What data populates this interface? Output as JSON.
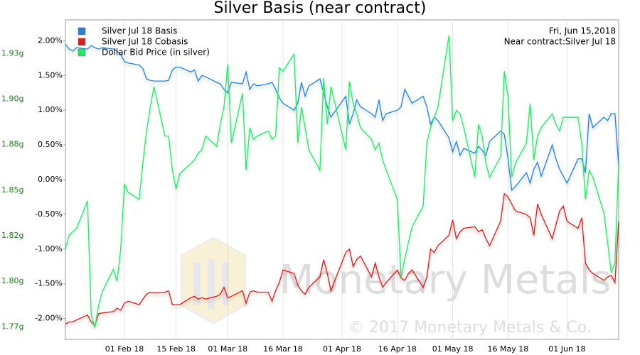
{
  "chart_data": {
    "type": "line",
    "title": "Silver Basis (near contract)",
    "annotations": [
      "Fri, Jun 15,2018",
      "Near contract:Silver Jul 18"
    ],
    "watermark": [
      "Monetary Metals",
      "© 2017 Monetary Metals & Co."
    ],
    "legend": "top-left",
    "xgrid": true,
    "ygrid": false,
    "x": [
      "2018-01-16",
      "2018-01-17",
      "2018-01-18",
      "2018-01-19",
      "2018-01-22",
      "2018-01-23",
      "2018-01-24",
      "2018-01-25",
      "2018-01-26",
      "2018-01-29",
      "2018-01-30",
      "2018-01-31",
      "2018-02-01",
      "2018-02-02",
      "2018-02-05",
      "2018-02-06",
      "2018-02-07",
      "2018-02-08",
      "2018-02-09",
      "2018-02-12",
      "2018-02-13",
      "2018-02-14",
      "2018-02-15",
      "2018-02-16",
      "2018-02-19",
      "2018-02-20",
      "2018-02-21",
      "2018-02-22",
      "2018-02-23",
      "2018-02-26",
      "2018-02-27",
      "2018-02-28",
      "2018-03-01",
      "2018-03-02",
      "2018-03-05",
      "2018-03-06",
      "2018-03-07",
      "2018-03-08",
      "2018-03-09",
      "2018-03-12",
      "2018-03-13",
      "2018-03-14",
      "2018-03-15",
      "2018-03-16",
      "2018-03-19",
      "2018-03-20",
      "2018-03-21",
      "2018-03-22",
      "2018-03-23",
      "2018-03-26",
      "2018-03-27",
      "2018-03-28",
      "2018-03-29",
      "2018-04-02",
      "2018-04-03",
      "2018-04-04",
      "2018-04-05",
      "2018-04-06",
      "2018-04-09",
      "2018-04-10",
      "2018-04-11",
      "2018-04-12",
      "2018-04-13",
      "2018-04-16",
      "2018-04-17",
      "2018-04-18",
      "2018-04-19",
      "2018-04-20",
      "2018-04-23",
      "2018-04-24",
      "2018-04-25",
      "2018-04-26",
      "2018-04-27",
      "2018-04-30",
      "2018-05-01",
      "2018-05-02",
      "2018-05-03",
      "2018-05-04",
      "2018-05-07",
      "2018-05-08",
      "2018-05-09",
      "2018-05-10",
      "2018-05-11",
      "2018-05-14",
      "2018-05-15",
      "2018-05-16",
      "2018-05-17",
      "2018-05-18",
      "2018-05-21",
      "2018-05-22",
      "2018-05-23",
      "2018-05-24",
      "2018-05-25",
      "2018-05-28",
      "2018-05-29",
      "2018-05-30",
      "2018-05-31",
      "2018-06-01",
      "2018-06-04",
      "2018-06-05",
      "2018-06-06",
      "2018-06-07",
      "2018-06-08",
      "2018-06-11",
      "2018-06-12",
      "2018-06-13",
      "2018-06-14",
      "2018-06-15"
    ],
    "xlim": [
      "2018-01-16",
      "2018-06-15"
    ],
    "xticks": [
      {
        "value": "2018-02-01",
        "label": "01 Feb 18"
      },
      {
        "value": "2018-02-15",
        "label": "15 Feb 18"
      },
      {
        "value": "2018-03-01",
        "label": "01 Mar 18"
      },
      {
        "value": "2018-03-16",
        "label": "16 Mar 18"
      },
      {
        "value": "2018-04-01",
        "label": "01 Apr 18"
      },
      {
        "value": "2018-04-16",
        "label": "16 Apr 18"
      },
      {
        "value": "2018-05-01",
        "label": "01 May 18"
      },
      {
        "value": "2018-05-16",
        "label": "16 May 18"
      },
      {
        "value": "2018-06-01",
        "label": "01 Jun 18"
      }
    ],
    "ylim": [
      -2.3,
      2.3
    ],
    "yticks": [
      {
        "value": 2,
        "label": "2.00%"
      },
      {
        "value": 1.5,
        "label": "1.50%"
      },
      {
        "value": 1,
        "label": "1.00%"
      },
      {
        "value": 0.5,
        "label": "0.50%"
      },
      {
        "value": 0,
        "label": "0.00%"
      },
      {
        "value": -0.5,
        "label": "-0.50%"
      },
      {
        "value": -1,
        "label": "-1.00%"
      },
      {
        "value": -1.5,
        "label": "-1.50%"
      },
      {
        "value": -2,
        "label": "-2.00%"
      }
    ],
    "y2lim": [
      1.766,
      1.953
    ],
    "y2ticks": [
      {
        "value": 1.9333,
        "label": "1.93g"
      },
      {
        "value": 1.9067,
        "label": "1.90g"
      },
      {
        "value": 1.88,
        "label": "1.88g"
      },
      {
        "value": 1.8533,
        "label": "1.85g"
      },
      {
        "value": 1.8267,
        "label": "1.82g"
      },
      {
        "value": 1.8,
        "label": "1.80g"
      },
      {
        "value": 1.7733,
        "label": "1.77g"
      }
    ],
    "y2color": "#1a7a1a",
    "series": [
      {
        "name": "Silver Jul 18 Basis",
        "color": "#2b7fd6",
        "values": [
          1.95,
          1.88,
          1.85,
          1.9,
          1.88,
          1.93,
          1.9,
          1.88,
          1.9,
          1.88,
          1.85,
          1.8,
          1.7,
          1.68,
          1.65,
          1.6,
          1.45,
          1.43,
          1.42,
          1.42,
          1.43,
          1.58,
          1.62,
          1.62,
          1.55,
          1.58,
          1.42,
          1.5,
          1.48,
          1.4,
          1.38,
          1.3,
          1.25,
          1.4,
          1.38,
          1.55,
          1.3,
          1.38,
          1.35,
          1.38,
          1.4,
          1.3,
          1.18,
          1.1,
          1.0,
          1.1,
          1.4,
          1.2,
          1.35,
          1.45,
          1.25,
          1.05,
          0.9,
          1.2,
          0.8,
          0.95,
          1.15,
          1.05,
          0.95,
          0.9,
          1.15,
          0.85,
          0.95,
          1.0,
          1.05,
          1.3,
          1.2,
          1.1,
          1.2,
          1.05,
          0.8,
          0.9,
          0.85,
          0.6,
          0.4,
          0.55,
          0.35,
          0.45,
          0.38,
          0.48,
          0.42,
          0.35,
          0.55,
          0.7,
          0.65,
          0.3,
          -0.15,
          -0.1,
          0.1,
          -0.05,
          0.15,
          0.25,
          0.05,
          0.5,
          0.3,
          0.15,
          0.05,
          -0.05,
          0.3,
          0.3,
          0.1,
          0.95,
          0.75,
          0.9,
          0.85,
          0.95,
          0.95,
          0.2
        ]
      },
      {
        "name": "Silver Jul 18 Cobasis",
        "color": "#d42020",
        "values": [
          -2.08,
          -2.05,
          -2.05,
          -2.02,
          -1.95,
          -2.05,
          -2.1,
          -1.93,
          -1.92,
          -1.9,
          -1.85,
          -1.88,
          -1.78,
          -1.75,
          -1.8,
          -1.72,
          -1.65,
          -1.62,
          -1.63,
          -1.62,
          -1.6,
          -1.8,
          -1.8,
          -1.8,
          -1.7,
          -1.68,
          -1.72,
          -1.7,
          -1.72,
          -1.68,
          -1.65,
          -1.55,
          -1.7,
          -1.68,
          -1.6,
          -1.78,
          -1.62,
          -1.6,
          -1.62,
          -1.62,
          -1.75,
          -1.6,
          -1.48,
          -1.3,
          -1.35,
          -1.52,
          -1.6,
          -1.65,
          -1.55,
          -1.4,
          -1.15,
          -1.35,
          -1.6,
          -1.05,
          -1.0,
          -1.25,
          -1.15,
          -1.1,
          -1.4,
          -1.2,
          -1.4,
          -1.55,
          -1.48,
          -1.3,
          -1.42,
          -1.45,
          -1.35,
          -1.3,
          -1.55,
          -1.4,
          -1.0,
          -1.05,
          -0.95,
          -0.8,
          -0.58,
          -0.85,
          -0.75,
          -0.7,
          -0.68,
          -0.75,
          -0.72,
          -0.85,
          -0.95,
          -0.6,
          -0.2,
          -0.25,
          -0.35,
          -0.45,
          -0.5,
          -0.55,
          -0.8,
          -0.35,
          -0.5,
          -0.85,
          -0.65,
          -0.45,
          -0.38,
          -0.6,
          -0.7,
          -0.55,
          -1.2,
          -1.3,
          -1.35,
          -1.45,
          -1.4,
          -1.38,
          -1.48,
          -0.6
        ]
      },
      {
        "name": "Dollar Bid Price (in silver)",
        "color": "#26e866",
        "axis": "y2",
        "values": [
          1.819,
          1.827,
          1.829,
          1.831,
          1.847,
          1.78,
          1.773,
          1.786,
          1.794,
          1.807,
          1.8,
          1.819,
          1.857,
          1.852,
          1.848,
          1.869,
          1.888,
          1.902,
          1.914,
          1.885,
          1.885,
          1.865,
          1.854,
          1.863,
          1.869,
          1.871,
          1.875,
          1.877,
          1.885,
          1.879,
          1.892,
          1.902,
          1.927,
          1.881,
          1.91,
          1.865,
          1.89,
          1.883,
          1.885,
          1.888,
          1.883,
          1.885,
          1.925,
          1.923,
          1.933,
          1.881,
          1.902,
          1.89,
          1.877,
          1.865,
          1.919,
          1.892,
          1.914,
          1.877,
          1.917,
          1.904,
          1.898,
          1.89,
          1.883,
          1.877,
          1.881,
          1.871,
          1.865,
          1.848,
          1.802,
          1.813,
          1.823,
          1.832,
          1.844,
          1.881,
          1.89,
          1.896,
          1.902,
          1.944,
          1.894,
          1.9,
          1.898,
          1.89,
          1.861,
          1.892,
          1.885,
          1.869,
          1.861,
          1.873,
          1.923,
          1.908,
          1.861,
          1.869,
          1.881,
          1.904,
          1.871,
          1.885,
          1.89,
          1.898,
          1.892,
          1.888,
          1.896,
          1.896,
          1.896,
          1.881,
          1.848,
          1.865,
          1.861,
          1.84,
          1.823,
          1.805,
          1.811,
          1.869
        ]
      }
    ]
  }
}
